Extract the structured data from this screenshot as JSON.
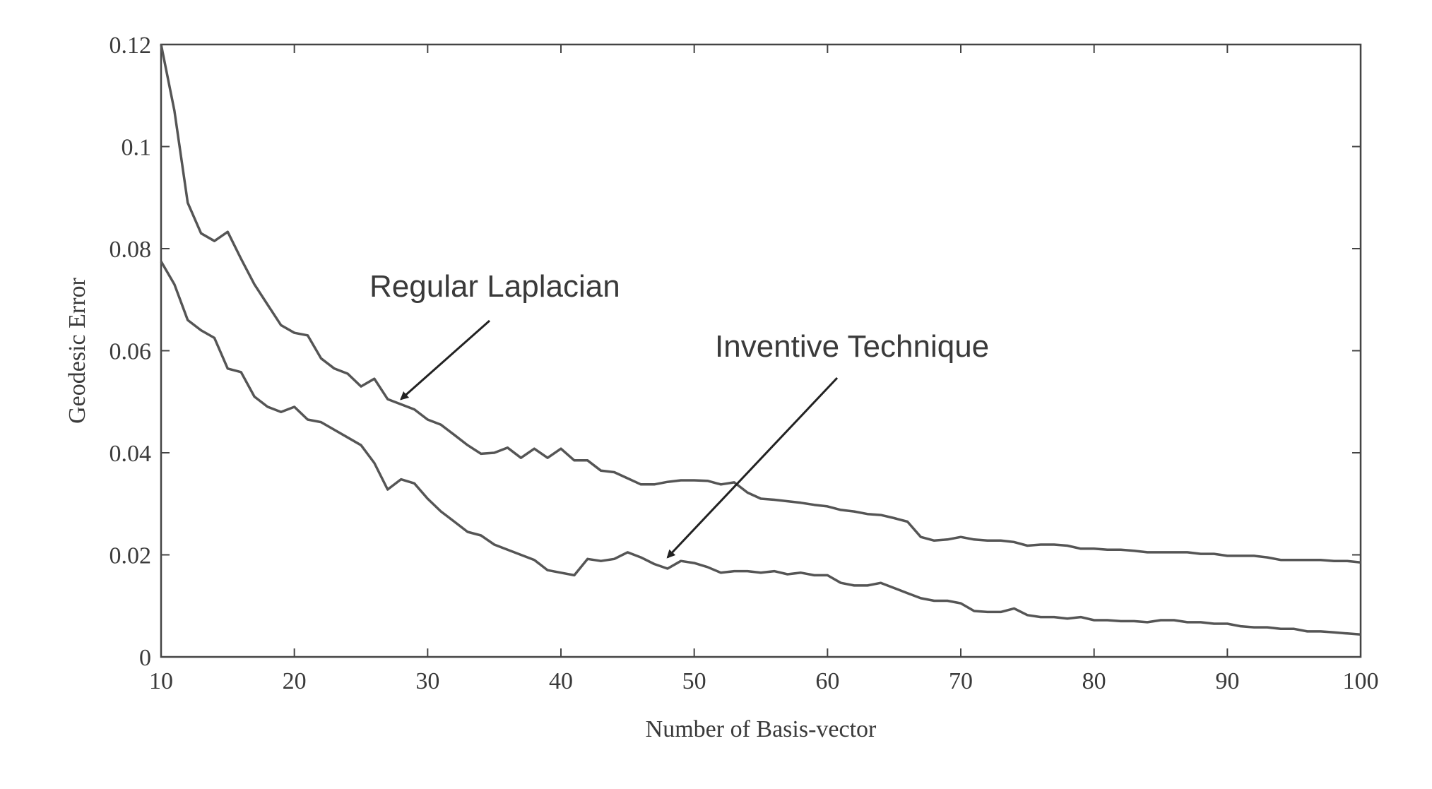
{
  "chart_data": {
    "type": "line",
    "title": "",
    "xlabel": "Number of Basis-vector",
    "ylabel": "Geodesic Error",
    "xlim": [
      10,
      100
    ],
    "ylim": [
      0,
      0.12
    ],
    "xticks": [
      10,
      20,
      30,
      40,
      50,
      60,
      70,
      80,
      90,
      100
    ],
    "yticks": [
      0,
      0.02,
      0.04,
      0.06,
      0.08,
      0.1,
      0.12
    ],
    "xtick_labels": [
      "10",
      "20",
      "30",
      "40",
      "50",
      "60",
      "70",
      "80",
      "90",
      "100"
    ],
    "ytick_labels": [
      "0",
      "0.02",
      "0.04",
      "0.06",
      "0.08",
      "0.1",
      "0.12"
    ],
    "grid": false,
    "legend": "none",
    "series": [
      {
        "name": "Regular Laplacian",
        "x": [
          10,
          11,
          12,
          13,
          14,
          15,
          16,
          17,
          18,
          19,
          20,
          21,
          22,
          23,
          24,
          25,
          26,
          27,
          28,
          29,
          30,
          31,
          32,
          33,
          34,
          35,
          36,
          37,
          38,
          39,
          40,
          41,
          42,
          43,
          44,
          45,
          46,
          47,
          48,
          49,
          50,
          51,
          52,
          53,
          54,
          55,
          56,
          57,
          58,
          59,
          60,
          61,
          62,
          63,
          64,
          65,
          66,
          67,
          68,
          69,
          70,
          71,
          72,
          73,
          74,
          75,
          76,
          77,
          78,
          79,
          80,
          81,
          82,
          83,
          84,
          85,
          86,
          87,
          88,
          89,
          90,
          91,
          92,
          93,
          94,
          95,
          96,
          97,
          98,
          99,
          100
        ],
        "y": [
          0.12,
          0.107,
          0.089,
          0.083,
          0.0815,
          0.0833,
          0.078,
          0.073,
          0.069,
          0.065,
          0.0635,
          0.063,
          0.0585,
          0.0565,
          0.0555,
          0.053,
          0.0545,
          0.0505,
          0.0495,
          0.0485,
          0.0465,
          0.0455,
          0.0435,
          0.0415,
          0.0398,
          0.04,
          0.041,
          0.039,
          0.0408,
          0.039,
          0.0408,
          0.0385,
          0.0385,
          0.0365,
          0.0362,
          0.035,
          0.0338,
          0.0338,
          0.0343,
          0.0346,
          0.0346,
          0.0345,
          0.0338,
          0.0342,
          0.0322,
          0.031,
          0.0308,
          0.0305,
          0.0302,
          0.0298,
          0.0295,
          0.0288,
          0.0285,
          0.028,
          0.0278,
          0.0272,
          0.0265,
          0.0235,
          0.0228,
          0.023,
          0.0235,
          0.023,
          0.0228,
          0.0228,
          0.0225,
          0.0218,
          0.022,
          0.022,
          0.0218,
          0.0212,
          0.0212,
          0.021,
          0.021,
          0.0208,
          0.0205,
          0.0205,
          0.0205,
          0.0205,
          0.0202,
          0.0202,
          0.0198,
          0.0198,
          0.0198,
          0.0195,
          0.019,
          0.019,
          0.019,
          0.019,
          0.0188,
          0.0188,
          0.0185
        ]
      },
      {
        "name": "Inventive Technique",
        "x": [
          10,
          11,
          12,
          13,
          14,
          15,
          16,
          17,
          18,
          19,
          20,
          21,
          22,
          23,
          24,
          25,
          26,
          27,
          28,
          29,
          30,
          31,
          32,
          33,
          34,
          35,
          36,
          37,
          38,
          39,
          40,
          41,
          42,
          43,
          44,
          45,
          46,
          47,
          48,
          49,
          50,
          51,
          52,
          53,
          54,
          55,
          56,
          57,
          58,
          59,
          60,
          61,
          62,
          63,
          64,
          65,
          66,
          67,
          68,
          69,
          70,
          71,
          72,
          73,
          74,
          75,
          76,
          77,
          78,
          79,
          80,
          81,
          82,
          83,
          84,
          85,
          86,
          87,
          88,
          89,
          90,
          91,
          92,
          93,
          94,
          95,
          96,
          97,
          98,
          99,
          100
        ],
        "y": [
          0.0775,
          0.073,
          0.066,
          0.064,
          0.0625,
          0.0565,
          0.0558,
          0.051,
          0.049,
          0.048,
          0.049,
          0.0465,
          0.046,
          0.0445,
          0.043,
          0.0415,
          0.038,
          0.0328,
          0.0348,
          0.034,
          0.031,
          0.0285,
          0.0265,
          0.0245,
          0.0238,
          0.022,
          0.021,
          0.02,
          0.019,
          0.017,
          0.0165,
          0.016,
          0.0192,
          0.0188,
          0.0192,
          0.0205,
          0.0195,
          0.0182,
          0.0173,
          0.0188,
          0.0184,
          0.0176,
          0.0165,
          0.0168,
          0.0168,
          0.0165,
          0.0168,
          0.0162,
          0.0165,
          0.016,
          0.016,
          0.0145,
          0.014,
          0.014,
          0.0145,
          0.0135,
          0.0125,
          0.0115,
          0.011,
          0.011,
          0.0105,
          0.009,
          0.0088,
          0.0088,
          0.0095,
          0.0082,
          0.0078,
          0.0078,
          0.0075,
          0.0078,
          0.0072,
          0.0072,
          0.007,
          0.007,
          0.0068,
          0.0072,
          0.0072,
          0.0068,
          0.0068,
          0.0065,
          0.0065,
          0.006,
          0.0058,
          0.0058,
          0.0055,
          0.0055,
          0.005,
          0.005,
          0.0048,
          0.0046,
          0.0044
        ]
      }
    ],
    "annotations": [
      {
        "text": "Regular Laplacian",
        "points_to": {
          "x": 28,
          "y": 0.0505
        }
      },
      {
        "text": "Inventive Technique",
        "points_to": {
          "x": 48,
          "y": 0.0195
        }
      }
    ]
  }
}
